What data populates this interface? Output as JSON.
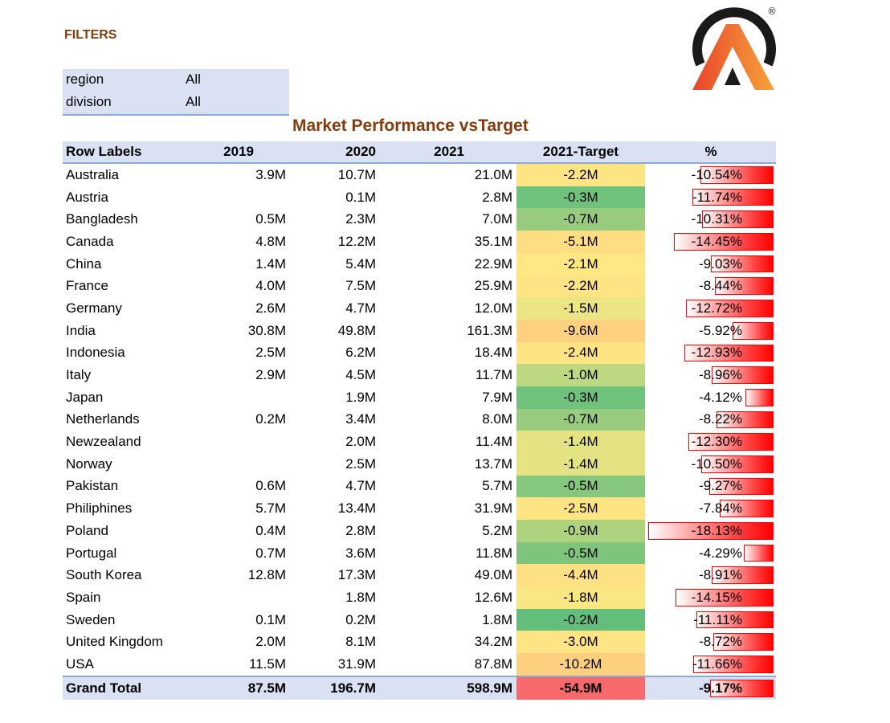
{
  "filters": {
    "title": "FILTERS",
    "rows": [
      {
        "key": "region",
        "value": "All"
      },
      {
        "key": "division",
        "value": "All"
      }
    ]
  },
  "logo": {
    "registered_mark": "®",
    "colors": {
      "gradient_start": "#e8452b",
      "gradient_end": "#f7a33a",
      "ring": "#1a1a1a"
    }
  },
  "pivot": {
    "title": "Market Performance vsTarget",
    "headers": {
      "label": "Row Labels",
      "y2019": "2019",
      "y2020": "2020",
      "y2021": "2021",
      "target": "2021-Target",
      "pct": "%"
    },
    "rows": [
      {
        "label": "Australia",
        "y2019": "3.9M",
        "y2020": "10.7M",
        "y2021": "21.0M",
        "target": "-2.2M",
        "target_color": "#ffe483",
        "pct": "-10.54%",
        "pct_value": 10.54
      },
      {
        "label": "Austria",
        "y2019": "",
        "y2020": "0.1M",
        "y2021": "2.8M",
        "target": "-0.3M",
        "target_color": "#6fc27c",
        "pct": "-11.74%",
        "pct_value": 11.74
      },
      {
        "label": "Bangladesh",
        "y2019": "0.5M",
        "y2020": "2.3M",
        "y2021": "7.0M",
        "target": "-0.7M",
        "target_color": "#98cb7e",
        "pct": "-10.31%",
        "pct_value": 10.31
      },
      {
        "label": "Canada",
        "y2019": "4.8M",
        "y2020": "12.2M",
        "y2021": "35.1M",
        "target": "-5.1M",
        "target_color": "#ffdd82",
        "pct": "-14.45%",
        "pct_value": 14.45
      },
      {
        "label": "China",
        "y2019": "1.4M",
        "y2020": "5.4M",
        "y2021": "22.9M",
        "target": "-2.1M",
        "target_color": "#ffe884",
        "pct": "-9.03%",
        "pct_value": 9.03
      },
      {
        "label": "France",
        "y2019": "4.0M",
        "y2020": "7.5M",
        "y2021": "25.9M",
        "target": "-2.2M",
        "target_color": "#ffe483",
        "pct": "-8.44%",
        "pct_value": 8.44
      },
      {
        "label": "Germany",
        "y2019": "2.6M",
        "y2020": "4.7M",
        "y2021": "12.0M",
        "target": "-1.5M",
        "target_color": "#ebe583",
        "pct": "-12.72%",
        "pct_value": 12.72
      },
      {
        "label": "India",
        "y2019": "30.8M",
        "y2020": "49.8M",
        "y2021": "161.3M",
        "target": "-9.6M",
        "target_color": "#fdd17f",
        "pct": "-5.92%",
        "pct_value": 5.92
      },
      {
        "label": "Indonesia",
        "y2019": "2.5M",
        "y2020": "6.2M",
        "y2021": "18.4M",
        "target": "-2.4M",
        "target_color": "#ffe483",
        "pct": "-12.93%",
        "pct_value": 12.93
      },
      {
        "label": "Italy",
        "y2019": "2.9M",
        "y2020": "4.5M",
        "y2021": "11.7M",
        "target": "-1.0M",
        "target_color": "#bcd880",
        "pct": "-8.96%",
        "pct_value": 8.96
      },
      {
        "label": "Japan",
        "y2019": "",
        "y2020": "1.9M",
        "y2021": "7.9M",
        "target": "-0.3M",
        "target_color": "#6fc27c",
        "pct": "-4.12%",
        "pct_value": 4.12
      },
      {
        "label": "Netherlands",
        "y2019": "0.2M",
        "y2020": "3.4M",
        "y2021": "8.0M",
        "target": "-0.7M",
        "target_color": "#98cb7e",
        "pct": "-8.22%",
        "pct_value": 8.22
      },
      {
        "label": "Newzealand",
        "y2019": "",
        "y2020": "2.0M",
        "y2021": "11.4M",
        "target": "-1.4M",
        "target_color": "#e4e383",
        "pct": "-12.30%",
        "pct_value": 12.3
      },
      {
        "label": "Norway",
        "y2019": "",
        "y2020": "2.5M",
        "y2021": "13.7M",
        "target": "-1.4M",
        "target_color": "#e4e383",
        "pct": "-10.50%",
        "pct_value": 10.5
      },
      {
        "label": "Pakistan",
        "y2019": "0.6M",
        "y2020": "4.7M",
        "y2021": "5.7M",
        "target": "-0.5M",
        "target_color": "#85c77c",
        "pct": "-9.27%",
        "pct_value": 9.27
      },
      {
        "label": "Philiphines",
        "y2019": "5.7M",
        "y2020": "13.4M",
        "y2021": "31.9M",
        "target": "-2.5M",
        "target_color": "#ffe483",
        "pct": "-7.84%",
        "pct_value": 7.84
      },
      {
        "label": "Poland",
        "y2019": "0.4M",
        "y2020": "2.8M",
        "y2021": "5.2M",
        "target": "-0.9M",
        "target_color": "#add37f",
        "pct": "-18.13%",
        "pct_value": 18.13
      },
      {
        "label": "Portugal",
        "y2019": "0.7M",
        "y2020": "3.6M",
        "y2021": "11.8M",
        "target": "-0.5M",
        "target_color": "#7ec57b",
        "pct": "-4.29%",
        "pct_value": 4.29
      },
      {
        "label": "South Korea",
        "y2019": "12.8M",
        "y2020": "17.3M",
        "y2021": "49.0M",
        "target": "-4.4M",
        "target_color": "#ffe083",
        "pct": "-8.91%",
        "pct_value": 8.91
      },
      {
        "label": "Spain",
        "y2019": "",
        "y2020": "1.8M",
        "y2021": "12.6M",
        "target": "-1.8M",
        "target_color": "#f9e784",
        "pct": "-14.15%",
        "pct_value": 14.15
      },
      {
        "label": "Sweden",
        "y2019": "0.1M",
        "y2020": "0.2M",
        "y2021": "1.8M",
        "target": "-0.2M",
        "target_color": "#63be7b",
        "pct": "-11.11%",
        "pct_value": 11.11
      },
      {
        "label": "United Kingdom",
        "y2019": "2.0M",
        "y2020": "8.1M",
        "y2021": "34.2M",
        "target": "-3.0M",
        "target_color": "#ffe483",
        "pct": "-8.72%",
        "pct_value": 8.72
      },
      {
        "label": "USA",
        "y2019": "11.5M",
        "y2020": "31.9M",
        "y2021": "87.8M",
        "target": "-10.2M",
        "target_color": "#fdd07f",
        "pct": "-11.66%",
        "pct_value": 11.66
      }
    ],
    "total": {
      "label": "Grand Total",
      "y2019": "87.5M",
      "y2020": "196.7M",
      "y2021": "598.9M",
      "target": "-54.9M",
      "target_color": "#f8696b",
      "pct": "-9.17%",
      "pct_value": 9.17
    },
    "pct_bar_max": 18.13
  }
}
